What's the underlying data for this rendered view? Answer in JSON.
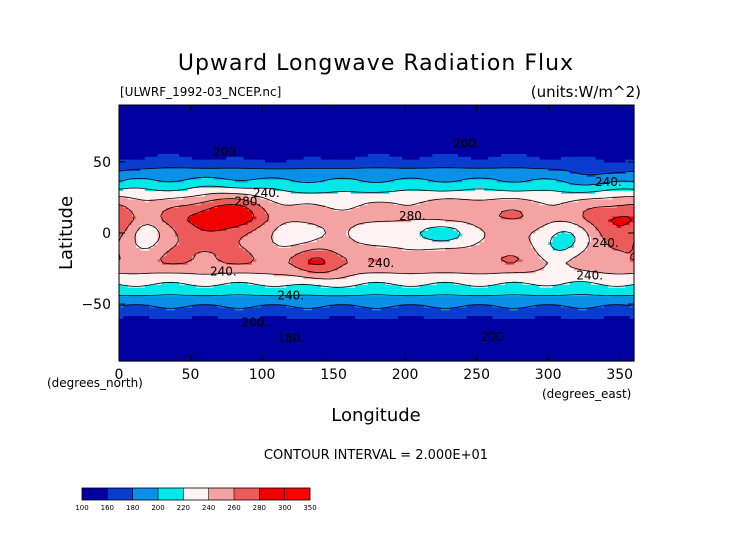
{
  "chart_data": {
    "type": "heatmap",
    "title": "Upward Longwave Radiation Flux",
    "source_label": "[ULWRF_1992-03_NCEP.nc]",
    "units_label": "(units:W/m^2)",
    "xlabel": "Longitude",
    "ylabel": "Latitude",
    "x_unit_label": "(degrees_east)",
    "y_unit_label": "(degrees_north)",
    "xlim": [
      0,
      360
    ],
    "ylim": [
      -90,
      90
    ],
    "x_ticks": [
      0,
      50,
      100,
      150,
      200,
      250,
      300,
      350
    ],
    "y_ticks": [
      -50,
      0,
      50
    ],
    "contour_interval_text": "CONTOUR INTERVAL = 2.000E+01",
    "contour_labels": [
      {
        "text": "200.",
        "lon": 75,
        "lat": 57
      },
      {
        "text": "200.",
        "lon": 243,
        "lat": 63
      },
      {
        "text": "240.",
        "lon": 342,
        "lat": 36
      },
      {
        "text": "240.",
        "lon": 103,
        "lat": 28
      },
      {
        "text": "280.",
        "lon": 90,
        "lat": 22
      },
      {
        "text": "280.",
        "lon": 205,
        "lat": 12
      },
      {
        "text": "240.",
        "lon": 340,
        "lat": -7
      },
      {
        "text": "240.",
        "lon": 183,
        "lat": -21
      },
      {
        "text": "240.",
        "lon": 73,
        "lat": -27
      },
      {
        "text": "240.",
        "lon": 329,
        "lat": -30
      },
      {
        "text": "240.",
        "lon": 120,
        "lat": -44
      },
      {
        "text": "200.",
        "lon": 95,
        "lat": -63
      },
      {
        "text": "180.",
        "lon": 120,
        "lat": -74
      },
      {
        "text": "200.",
        "lon": 262,
        "lat": -73
      }
    ],
    "color_scale": {
      "levels": [
        "100",
        "160",
        "180",
        "200",
        "220",
        "240",
        "260",
        "280",
        "300",
        "350"
      ],
      "colors": [
        "#0000a0",
        "#0a3cd0",
        "#0a90e8",
        "#00e8e8",
        "#fff2f2",
        "#f5a2a2",
        "#ec5a5a",
        "#f00000",
        "#ff0000"
      ]
    }
  }
}
